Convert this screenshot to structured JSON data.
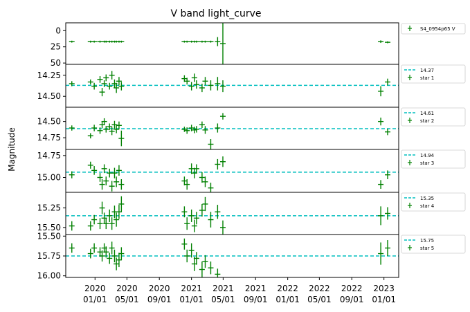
{
  "chart_data": {
    "type": "scatter",
    "title": "V band light_curve",
    "ylabel": "Magnitude",
    "x_tick_labels": [
      [
        "2020",
        "01/01"
      ],
      [
        "2020",
        "05/01"
      ],
      [
        "2020",
        "09/01"
      ],
      [
        "2021",
        "01/01"
      ],
      [
        "2021",
        "05/01"
      ],
      [
        "2021",
        "09/01"
      ],
      [
        "2022",
        "01/01"
      ],
      [
        "2022",
        "05/01"
      ],
      [
        "2022",
        "09/01"
      ],
      [
        "2023",
        "01/01"
      ]
    ],
    "x_tick_dates": [
      "2020-01-01",
      "2020-05-01",
      "2020-09-01",
      "2021-01-01",
      "2021-05-01",
      "2021-09-01",
      "2022-01-01",
      "2022-05-01",
      "2022-09-01",
      "2023-01-01"
    ],
    "xlim": [
      "2019-09-12",
      "2023-02-26"
    ],
    "colors": {
      "points": "#008000",
      "reference_line": "#00bfbf"
    },
    "panels": [
      {
        "legend": [
          "S4_0954p65 V"
        ],
        "ylim": [
          52,
          -12
        ],
        "ytick_values": [
          0,
          25,
          50
        ],
        "ytick_labels": [
          "0",
          "25",
          "50"
        ],
        "points": [
          {
            "date": "2019-10-05",
            "mag": 17,
            "err": 1.5
          },
          {
            "date": "2019-12-15",
            "mag": 17,
            "err": 1.5
          },
          {
            "date": "2019-12-29",
            "mag": 17,
            "err": 1.5
          },
          {
            "date": "2020-01-20",
            "mag": 17,
            "err": 1.5
          },
          {
            "date": "2020-02-05",
            "mag": 17,
            "err": 1.5
          },
          {
            "date": "2020-02-12",
            "mag": 17,
            "err": 1.5
          },
          {
            "date": "2020-02-25",
            "mag": 17,
            "err": 1.5
          },
          {
            "date": "2020-03-05",
            "mag": 17,
            "err": 1.5
          },
          {
            "date": "2020-03-15",
            "mag": 17,
            "err": 1.5
          },
          {
            "date": "2020-03-22",
            "mag": 17,
            "err": 1.5
          },
          {
            "date": "2020-04-01",
            "mag": 17,
            "err": 1.5
          },
          {
            "date": "2020-04-10",
            "mag": 17,
            "err": 1.5
          },
          {
            "date": "2020-12-05",
            "mag": 17,
            "err": 1.5
          },
          {
            "date": "2020-12-15",
            "mag": 17,
            "err": 1.5
          },
          {
            "date": "2021-01-01",
            "mag": 17,
            "err": 1.5
          },
          {
            "date": "2021-01-12",
            "mag": 17,
            "err": 1.5
          },
          {
            "date": "2021-01-20",
            "mag": 17,
            "err": 1.5
          },
          {
            "date": "2021-02-10",
            "mag": 17,
            "err": 1.5
          },
          {
            "date": "2021-02-22",
            "mag": 17,
            "err": 1.5
          },
          {
            "date": "2021-03-15",
            "mag": 17,
            "err": 1.5
          },
          {
            "date": "2021-04-10",
            "mag": 17,
            "err": 7
          },
          {
            "date": "2021-04-30",
            "mag": 20,
            "err": 34
          },
          {
            "date": "2022-12-20",
            "mag": 17,
            "err": 2
          },
          {
            "date": "2023-01-15",
            "mag": 18,
            "err": 1.5
          }
        ]
      },
      {
        "legend": [
          "14.37",
          "star 1"
        ],
        "ylim": [
          14.63,
          14.12
        ],
        "ytick_values": [
          14.25,
          14.5
        ],
        "ytick_labels": [
          "14.25",
          "14.50"
        ],
        "reference": 14.37,
        "points": [
          {
            "date": "2019-10-05",
            "mag": 14.35,
            "err": 0.03
          },
          {
            "date": "2019-12-15",
            "mag": 14.33,
            "err": 0.03
          },
          {
            "date": "2019-12-29",
            "mag": 14.38,
            "err": 0.04
          },
          {
            "date": "2020-01-20",
            "mag": 14.3,
            "err": 0.04
          },
          {
            "date": "2020-01-28",
            "mag": 14.45,
            "err": 0.05
          },
          {
            "date": "2020-02-05",
            "mag": 14.35,
            "err": 0.04
          },
          {
            "date": "2020-02-12",
            "mag": 14.28,
            "err": 0.04
          },
          {
            "date": "2020-02-25",
            "mag": 14.38,
            "err": 0.04
          },
          {
            "date": "2020-03-05",
            "mag": 14.25,
            "err": 0.05
          },
          {
            "date": "2020-03-15",
            "mag": 14.35,
            "err": 0.05
          },
          {
            "date": "2020-03-22",
            "mag": 14.4,
            "err": 0.06
          },
          {
            "date": "2020-04-01",
            "mag": 14.32,
            "err": 0.05
          },
          {
            "date": "2020-04-10",
            "mag": 14.38,
            "err": 0.05
          },
          {
            "date": "2020-12-05",
            "mag": 14.29,
            "err": 0.04
          },
          {
            "date": "2020-12-15",
            "mag": 14.32,
            "err": 0.04
          },
          {
            "date": "2021-01-01",
            "mag": 14.38,
            "err": 0.05
          },
          {
            "date": "2021-01-12",
            "mag": 14.28,
            "err": 0.05
          },
          {
            "date": "2021-01-20",
            "mag": 14.36,
            "err": 0.05
          },
          {
            "date": "2021-02-10",
            "mag": 14.4,
            "err": 0.05
          },
          {
            "date": "2021-02-22",
            "mag": 14.32,
            "err": 0.05
          },
          {
            "date": "2021-03-15",
            "mag": 14.37,
            "err": 0.06
          },
          {
            "date": "2021-04-10",
            "mag": 14.35,
            "err": 0.08
          },
          {
            "date": "2021-04-30",
            "mag": 14.38,
            "err": 0.07
          },
          {
            "date": "2022-12-20",
            "mag": 14.44,
            "err": 0.06
          },
          {
            "date": "2023-01-15",
            "mag": 14.33,
            "err": 0.04
          }
        ]
      },
      {
        "legend": [
          "14.61",
          "star 2"
        ],
        "ylim": [
          14.93,
          14.28
        ],
        "ytick_values": [
          14.5,
          14.75
        ],
        "ytick_labels": [
          "14.50",
          "14.75"
        ],
        "reference": 14.61,
        "points": [
          {
            "date": "2019-10-05",
            "mag": 14.6,
            "err": 0.04
          },
          {
            "date": "2019-12-15",
            "mag": 14.72,
            "err": 0.04
          },
          {
            "date": "2019-12-29",
            "mag": 14.6,
            "err": 0.05
          },
          {
            "date": "2020-01-20",
            "mag": 14.64,
            "err": 0.05
          },
          {
            "date": "2020-01-28",
            "mag": 14.55,
            "err": 0.05
          },
          {
            "date": "2020-02-05",
            "mag": 14.5,
            "err": 0.05
          },
          {
            "date": "2020-02-12",
            "mag": 14.62,
            "err": 0.05
          },
          {
            "date": "2020-02-25",
            "mag": 14.58,
            "err": 0.05
          },
          {
            "date": "2020-03-05",
            "mag": 14.65,
            "err": 0.06
          },
          {
            "date": "2020-03-15",
            "mag": 14.55,
            "err": 0.06
          },
          {
            "date": "2020-03-22",
            "mag": 14.62,
            "err": 0.06
          },
          {
            "date": "2020-04-01",
            "mag": 14.56,
            "err": 0.06
          },
          {
            "date": "2020-04-10",
            "mag": 14.76,
            "err": 0.12
          },
          {
            "date": "2020-12-05",
            "mag": 14.62,
            "err": 0.04
          },
          {
            "date": "2020-12-15",
            "mag": 14.64,
            "err": 0.05
          },
          {
            "date": "2021-01-01",
            "mag": 14.6,
            "err": 0.05
          },
          {
            "date": "2021-01-12",
            "mag": 14.63,
            "err": 0.05
          },
          {
            "date": "2021-01-20",
            "mag": 14.62,
            "err": 0.05
          },
          {
            "date": "2021-02-10",
            "mag": 14.55,
            "err": 0.05
          },
          {
            "date": "2021-02-22",
            "mag": 14.63,
            "err": 0.06
          },
          {
            "date": "2021-03-15",
            "mag": 14.85,
            "err": 0.08
          },
          {
            "date": "2021-04-10",
            "mag": 14.6,
            "err": 0.07
          },
          {
            "date": "2021-04-30",
            "mag": 14.42,
            "err": 0.05
          },
          {
            "date": "2022-12-20",
            "mag": 14.5,
            "err": 0.06
          },
          {
            "date": "2023-01-15",
            "mag": 14.66,
            "err": 0.05
          }
        ]
      },
      {
        "legend": [
          "14.94",
          "star 3"
        ],
        "ylim": [
          15.17,
          14.68
        ],
        "ytick_values": [
          14.75,
          15.0
        ],
        "ytick_labels": [
          "14.75",
          "15.00"
        ],
        "reference": 14.94,
        "points": [
          {
            "date": "2019-10-05",
            "mag": 14.97,
            "err": 0.04
          },
          {
            "date": "2019-12-15",
            "mag": 14.86,
            "err": 0.04
          },
          {
            "date": "2019-12-29",
            "mag": 14.92,
            "err": 0.05
          },
          {
            "date": "2020-01-20",
            "mag": 15.0,
            "err": 0.05
          },
          {
            "date": "2020-01-28",
            "mag": 15.08,
            "err": 0.06
          },
          {
            "date": "2020-02-05",
            "mag": 14.9,
            "err": 0.05
          },
          {
            "date": "2020-02-12",
            "mag": 15.04,
            "err": 0.05
          },
          {
            "date": "2020-02-25",
            "mag": 14.95,
            "err": 0.05
          },
          {
            "date": "2020-03-05",
            "mag": 15.1,
            "err": 0.06
          },
          {
            "date": "2020-03-15",
            "mag": 14.95,
            "err": 0.06
          },
          {
            "date": "2020-03-22",
            "mag": 15.05,
            "err": 0.06
          },
          {
            "date": "2020-04-01",
            "mag": 14.92,
            "err": 0.06
          },
          {
            "date": "2020-04-10",
            "mag": 15.08,
            "err": 0.06
          },
          {
            "date": "2020-12-05",
            "mag": 15.04,
            "err": 0.05
          },
          {
            "date": "2020-12-15",
            "mag": 15.08,
            "err": 0.06
          },
          {
            "date": "2021-01-01",
            "mag": 14.9,
            "err": 0.06
          },
          {
            "date": "2021-01-12",
            "mag": 14.95,
            "err": 0.06
          },
          {
            "date": "2021-01-20",
            "mag": 14.9,
            "err": 0.05
          },
          {
            "date": "2021-02-10",
            "mag": 15.0,
            "err": 0.06
          },
          {
            "date": "2021-02-22",
            "mag": 15.05,
            "err": 0.06
          },
          {
            "date": "2021-03-15",
            "mag": 15.12,
            "err": 0.06
          },
          {
            "date": "2021-04-10",
            "mag": 14.85,
            "err": 0.06
          },
          {
            "date": "2021-04-30",
            "mag": 14.82,
            "err": 0.06
          },
          {
            "date": "2022-12-20",
            "mag": 15.08,
            "err": 0.05
          },
          {
            "date": "2023-01-15",
            "mag": 14.97,
            "err": 0.05
          }
        ]
      },
      {
        "legend": [
          "15.35",
          "star 4"
        ],
        "ylim": [
          15.59,
          15.05
        ],
        "ytick_values": [
          15.25,
          15.5
        ],
        "ytick_labels": [
          "15.25",
          "15.50"
        ],
        "reference": 15.35,
        "points": [
          {
            "date": "2019-10-05",
            "mag": 15.48,
            "err": 0.06
          },
          {
            "date": "2019-12-15",
            "mag": 15.48,
            "err": 0.06
          },
          {
            "date": "2019-12-29",
            "mag": 15.4,
            "err": 0.06
          },
          {
            "date": "2020-01-20",
            "mag": 15.45,
            "err": 0.07
          },
          {
            "date": "2020-01-28",
            "mag": 15.25,
            "err": 0.08
          },
          {
            "date": "2020-02-05",
            "mag": 15.38,
            "err": 0.07
          },
          {
            "date": "2020-02-12",
            "mag": 15.45,
            "err": 0.07
          },
          {
            "date": "2020-02-25",
            "mag": 15.35,
            "err": 0.08
          },
          {
            "date": "2020-03-05",
            "mag": 15.45,
            "err": 0.08
          },
          {
            "date": "2020-03-15",
            "mag": 15.3,
            "err": 0.08
          },
          {
            "date": "2020-03-22",
            "mag": 15.4,
            "err": 0.09
          },
          {
            "date": "2020-04-01",
            "mag": 15.3,
            "err": 0.09
          },
          {
            "date": "2020-04-10",
            "mag": 15.2,
            "err": 0.1
          },
          {
            "date": "2020-12-05",
            "mag": 15.3,
            "err": 0.07
          },
          {
            "date": "2020-12-15",
            "mag": 15.45,
            "err": 0.08
          },
          {
            "date": "2021-01-01",
            "mag": 15.35,
            "err": 0.08
          },
          {
            "date": "2021-01-12",
            "mag": 15.48,
            "err": 0.08
          },
          {
            "date": "2021-01-20",
            "mag": 15.38,
            "err": 0.08
          },
          {
            "date": "2021-02-10",
            "mag": 15.28,
            "err": 0.08
          },
          {
            "date": "2021-02-22",
            "mag": 15.2,
            "err": 0.09
          },
          {
            "date": "2021-03-15",
            "mag": 15.4,
            "err": 0.1
          },
          {
            "date": "2021-04-10",
            "mag": 15.3,
            "err": 0.09
          },
          {
            "date": "2021-04-30",
            "mag": 15.5,
            "err": 0.09
          },
          {
            "date": "2022-12-20",
            "mag": 15.35,
            "err": 0.12
          },
          {
            "date": "2023-01-15",
            "mag": 15.32,
            "err": 0.08
          }
        ]
      },
      {
        "legend": [
          "15.75",
          "star 5"
        ],
        "ylim": [
          16.02,
          15.48
        ],
        "ytick_values": [
          15.5,
          15.75,
          16.0
        ],
        "ytick_labels": [
          "15.50",
          "15.75",
          "16.00"
        ],
        "reference": 15.75,
        "points": [
          {
            "date": "2019-10-05",
            "mag": 15.65,
            "err": 0.06
          },
          {
            "date": "2019-12-15",
            "mag": 15.72,
            "err": 0.06
          },
          {
            "date": "2019-12-29",
            "mag": 15.65,
            "err": 0.06
          },
          {
            "date": "2020-01-20",
            "mag": 15.7,
            "err": 0.06
          },
          {
            "date": "2020-01-28",
            "mag": 15.75,
            "err": 0.07
          },
          {
            "date": "2020-02-05",
            "mag": 15.65,
            "err": 0.06
          },
          {
            "date": "2020-02-12",
            "mag": 15.7,
            "err": 0.07
          },
          {
            "date": "2020-02-25",
            "mag": 15.78,
            "err": 0.07
          },
          {
            "date": "2020-03-05",
            "mag": 15.65,
            "err": 0.08
          },
          {
            "date": "2020-03-15",
            "mag": 15.75,
            "err": 0.08
          },
          {
            "date": "2020-03-22",
            "mag": 15.85,
            "err": 0.08
          },
          {
            "date": "2020-04-01",
            "mag": 15.8,
            "err": 0.09
          },
          {
            "date": "2020-04-10",
            "mag": 15.72,
            "err": 0.08
          },
          {
            "date": "2020-12-05",
            "mag": 15.6,
            "err": 0.07
          },
          {
            "date": "2020-12-15",
            "mag": 15.75,
            "err": 0.08
          },
          {
            "date": "2021-01-01",
            "mag": 15.68,
            "err": 0.09
          },
          {
            "date": "2021-01-12",
            "mag": 15.85,
            "err": 0.09
          },
          {
            "date": "2021-01-20",
            "mag": 15.78,
            "err": 0.08
          },
          {
            "date": "2021-02-10",
            "mag": 15.92,
            "err": 0.1
          },
          {
            "date": "2021-02-22",
            "mag": 15.82,
            "err": 0.08
          },
          {
            "date": "2021-03-15",
            "mag": 15.9,
            "err": 0.08
          },
          {
            "date": "2021-04-10",
            "mag": 15.98,
            "err": 0.07
          },
          {
            "date": "2022-12-20",
            "mag": 15.72,
            "err": 0.14
          },
          {
            "date": "2023-01-15",
            "mag": 15.65,
            "err": 0.1
          }
        ]
      }
    ]
  }
}
